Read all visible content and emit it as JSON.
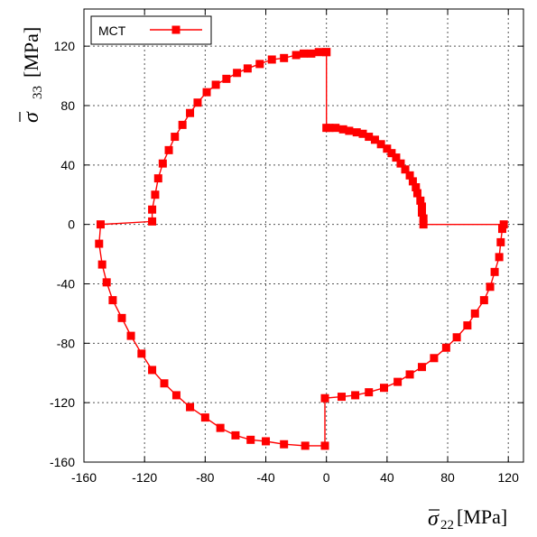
{
  "chart_data": {
    "type": "scatter",
    "title": "",
    "xlabel": {
      "symbol": "σ",
      "subscript": "22",
      "unit": "[MPa]"
    },
    "ylabel": {
      "symbol": "σ",
      "subscript": "33",
      "unit": "[MPa]"
    },
    "xlim": [
      -160,
      130
    ],
    "ylim": [
      -160,
      145
    ],
    "xticks": [
      -160,
      -120,
      -80,
      -40,
      0,
      40,
      80,
      120
    ],
    "yticks": [
      -160,
      -120,
      -80,
      -40,
      0,
      40,
      80,
      120
    ],
    "grid": true,
    "legend_position": "top-left",
    "series": [
      {
        "name": "MCT",
        "color": "#ff0000",
        "marker": "square",
        "line": true,
        "points": [
          [
            0,
            116
          ],
          [
            -5,
            116
          ],
          [
            -10,
            115
          ],
          [
            -15,
            115
          ],
          [
            -20,
            114
          ],
          [
            -28,
            112
          ],
          [
            -36,
            111
          ],
          [
            -44,
            108
          ],
          [
            -52,
            105
          ],
          [
            -59,
            102
          ],
          [
            -66,
            98
          ],
          [
            -73,
            94
          ],
          [
            -79,
            89
          ],
          [
            -85,
            82
          ],
          [
            -90,
            75
          ],
          [
            -95,
            67
          ],
          [
            -100,
            59
          ],
          [
            -104,
            50
          ],
          [
            -108,
            41
          ],
          [
            -111,
            31
          ],
          [
            -113,
            20
          ],
          [
            -115,
            10
          ],
          [
            -115,
            2
          ],
          [
            -149,
            0
          ],
          [
            -150,
            -13
          ],
          [
            -148,
            -27
          ],
          [
            -145,
            -39
          ],
          [
            -141,
            -51
          ],
          [
            -135,
            -63
          ],
          [
            -129,
            -75
          ],
          [
            -122,
            -87
          ],
          [
            -115,
            -98
          ],
          [
            -107,
            -107
          ],
          [
            -99,
            -115
          ],
          [
            -90,
            -123
          ],
          [
            -80,
            -130
          ],
          [
            -70,
            -137
          ],
          [
            -60,
            -142
          ],
          [
            -50,
            -145
          ],
          [
            -40,
            -146
          ],
          [
            -28,
            -148
          ],
          [
            -14,
            -149
          ],
          [
            -1,
            -149
          ],
          [
            -1,
            -117
          ],
          [
            10,
            -116
          ],
          [
            19,
            -115
          ],
          [
            28,
            -113
          ],
          [
            38,
            -110
          ],
          [
            47,
            -106
          ],
          [
            55,
            -101
          ],
          [
            63,
            -96
          ],
          [
            71,
            -90
          ],
          [
            79,
            -83
          ],
          [
            86,
            -76
          ],
          [
            93,
            -68
          ],
          [
            98,
            -60
          ],
          [
            104,
            -51
          ],
          [
            108,
            -42
          ],
          [
            111,
            -32
          ],
          [
            114,
            -22
          ],
          [
            115,
            -12
          ],
          [
            116,
            -3
          ],
          [
            117,
            0
          ],
          [
            64,
            0
          ],
          [
            64,
            4
          ],
          [
            63,
            8
          ],
          [
            63,
            12
          ],
          [
            62,
            16
          ],
          [
            60,
            21
          ],
          [
            59,
            25
          ],
          [
            57,
            29
          ],
          [
            55,
            33
          ],
          [
            52,
            37
          ],
          [
            49,
            41
          ],
          [
            46,
            45
          ],
          [
            43,
            48
          ],
          [
            40,
            51
          ],
          [
            36,
            54
          ],
          [
            32,
            57
          ],
          [
            28,
            59
          ],
          [
            24,
            61
          ],
          [
            20,
            62
          ],
          [
            15,
            63
          ],
          [
            11,
            64
          ],
          [
            6,
            65
          ],
          [
            2,
            65
          ],
          [
            0,
            65
          ],
          [
            0,
            116
          ]
        ]
      }
    ]
  }
}
